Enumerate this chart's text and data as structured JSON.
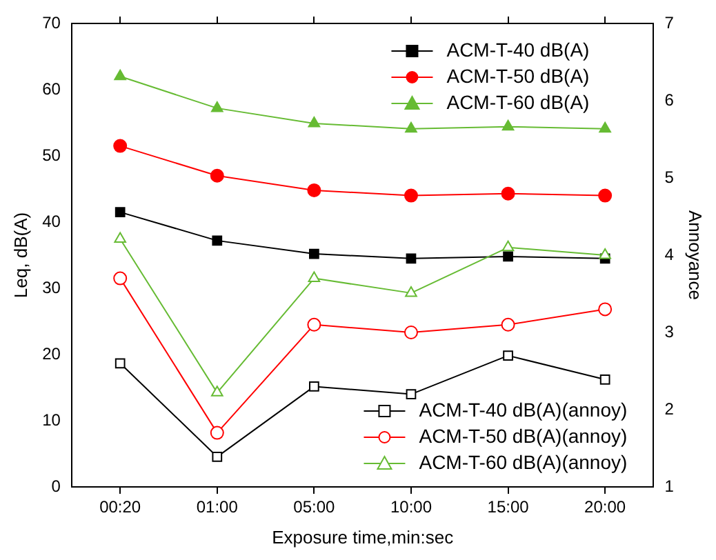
{
  "chart_data": {
    "type": "line",
    "xlabel": "Exposure time,min:sec",
    "ylabel": "Leq, dB(A)",
    "y2label": "Annoyance",
    "categories": [
      "00:20",
      "01:00",
      "05:00",
      "10:00",
      "15:00",
      "20:00"
    ],
    "ylim": [
      0,
      70
    ],
    "yticks": [
      0,
      10,
      20,
      30,
      40,
      50,
      60,
      70
    ],
    "y2lim": [
      1,
      7
    ],
    "y2ticks": [
      1,
      2,
      3,
      4,
      5,
      6,
      7
    ],
    "grid": false,
    "legend": "right",
    "series": [
      {
        "name": "ACM-T-40 dB(A)",
        "color": "#000000",
        "marker": "square",
        "values": [
          41.5,
          37.2,
          35.2,
          34.5,
          34.8,
          34.5
        ]
      },
      {
        "name": "ACM-T-50 dB(A)",
        "color": "#ff0000",
        "marker": "circle",
        "values": [
          51.5,
          47,
          44.8,
          44,
          44.3,
          44
        ]
      },
      {
        "name": "ACM-T-60 dB(A)",
        "color": "#66bb33",
        "marker": "triangle",
        "values": [
          62,
          57.2,
          54.9,
          54.1,
          54.4,
          54.1
        ]
      },
      {
        "name": "ACM-T-40 dB(A)(annoy)",
        "color": "#000000",
        "marker": "square",
        "axis": "y2",
        "values": [
          2.6,
          1.39,
          2.3,
          2.2,
          2.7,
          2.39
        ]
      },
      {
        "name": "ACM-T-50 dB(A)(annoy)",
        "color": "#ff0000",
        "marker": "circle",
        "axis": "y2",
        "values": [
          3.7,
          1.7,
          3.1,
          3.0,
          3.1,
          3.3
        ]
      },
      {
        "name": "ACM-T-60 dB(A)(annoy)",
        "color": "#66bb33",
        "marker": "triangle",
        "axis": "y2",
        "values": [
          4.21,
          2.22,
          3.7,
          3.51,
          4.1,
          4.0
        ]
      }
    ]
  }
}
